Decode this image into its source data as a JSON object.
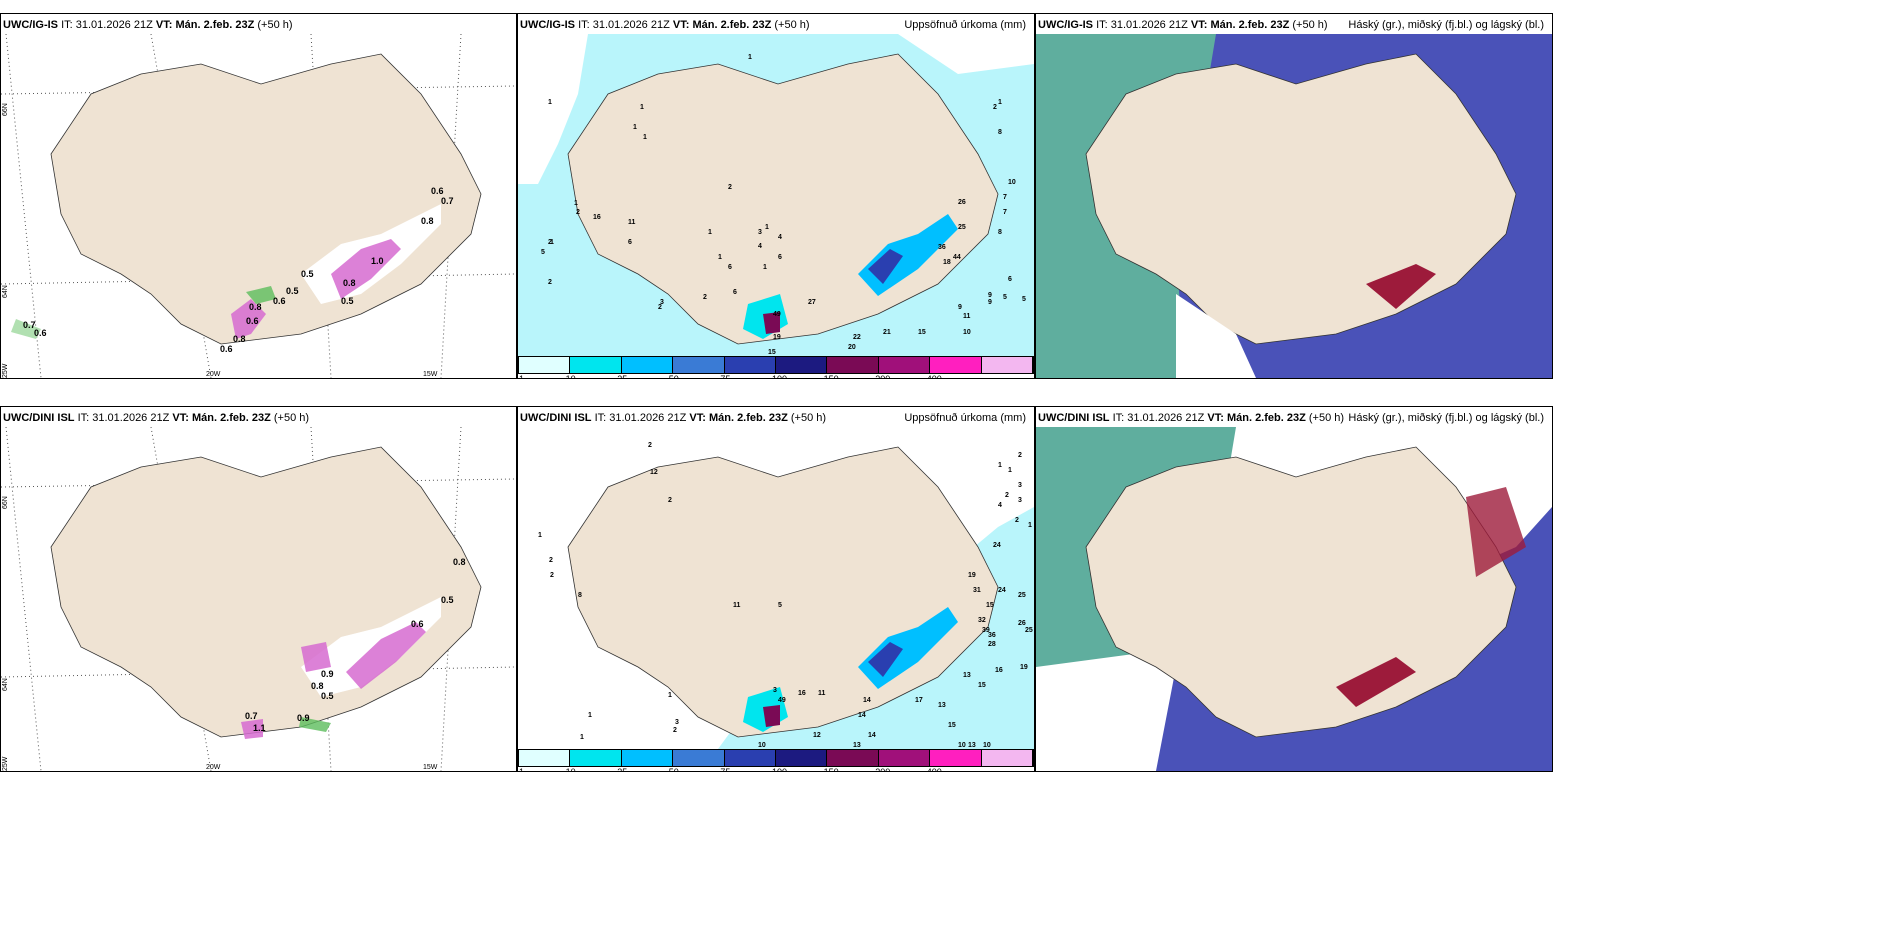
{
  "rows": [
    {
      "model_title": "UWC/IG-IS",
      "meta": {
        "it_label": "IT:",
        "it_value": "31.01.2026 21Z",
        "vt_label": "VT:",
        "vt_value": "Mán. 2.feb. 23Z",
        "lead": "(+50 h)"
      },
      "wind_values": [
        "0.7",
        "0.6",
        "0.6",
        "0.8",
        "0.5",
        "0.6",
        "0.8",
        "0.5",
        "0.5",
        "0.6",
        "0.7",
        "0.8",
        "1.0",
        "0.6",
        "0.8"
      ],
      "precip_values": [
        "1",
        "1",
        "1",
        "1",
        "1",
        "1",
        "2",
        "2",
        "2",
        "2",
        "1",
        "1",
        "1",
        "1",
        "1",
        "4",
        "6",
        "6",
        "5",
        "2",
        "16",
        "6",
        "11",
        "3",
        "3",
        "4",
        "6",
        "2",
        "27",
        "49",
        "19",
        "15",
        "22",
        "20",
        "17",
        "16",
        "15",
        "21",
        "15",
        "10",
        "5",
        "9",
        "9",
        "11",
        "9",
        "6",
        "5",
        "8",
        "7",
        "7",
        "10",
        "8",
        "26",
        "25",
        "36",
        "44",
        "18",
        "2",
        "1"
      ]
    },
    {
      "model_title": "UWC/DINI ISL",
      "meta": {
        "it_label": "IT:",
        "it_value": "31.01.2026 21Z",
        "vt_label": "VT:",
        "vt_value": "Mán. 2.feb. 23Z",
        "lead": "(+50 h)"
      },
      "wind_values": [
        "0.9",
        "0.8",
        "0.5",
        "0.9",
        "0.7",
        "1.1",
        "0.6",
        "0.5",
        "0.8"
      ],
      "precip_values": [
        "2",
        "2",
        "12",
        "2",
        "1",
        "2",
        "8",
        "11",
        "5",
        "1",
        "1",
        "1",
        "3",
        "2",
        "2",
        "3",
        "49",
        "16",
        "11",
        "12",
        "14",
        "14",
        "13",
        "14",
        "17",
        "13",
        "15",
        "13",
        "10",
        "10",
        "13",
        "15",
        "16",
        "19",
        "15",
        "32",
        "36",
        "39",
        "28",
        "31",
        "19",
        "24",
        "25",
        "26",
        "25",
        "24",
        "2",
        "3",
        "3",
        "4",
        "2",
        "1",
        "1",
        "1",
        "2",
        "10"
      ]
    }
  ],
  "precip_panel": {
    "right_title": "Uppsöfnuð úrkoma (mm)",
    "colorbar": {
      "ticks": [
        "1",
        "10",
        "25",
        "50",
        "75",
        "100",
        "150",
        "200",
        "400"
      ],
      "colors": [
        "#e0ffff",
        "#00e5ee",
        "#00bfff",
        "#3a7bd5",
        "#2a3fb0",
        "#1c1a80",
        "#7a0a55",
        "#a0107a",
        "#ff1fbf",
        "#f3b7f0"
      ]
    }
  },
  "cloud_panel": {
    "right_title": "Háský (gr.), miðský (fj.bl.) og lágský (bl.)"
  },
  "axis_labels": {
    "lat66": "66N",
    "lat64": "64N",
    "lon25": "25W",
    "lon20": "20W",
    "lon15": "15W"
  },
  "colors": {
    "land": "#efe3d3",
    "sea_precip": "#b9f5fb",
    "cloud_high": "#5fae9e",
    "cloud_mid": "#4a52b8",
    "cloud_low": "#9d1b3b",
    "wind_pink": "#d66bd0",
    "wind_green": "#5dbd5d"
  }
}
